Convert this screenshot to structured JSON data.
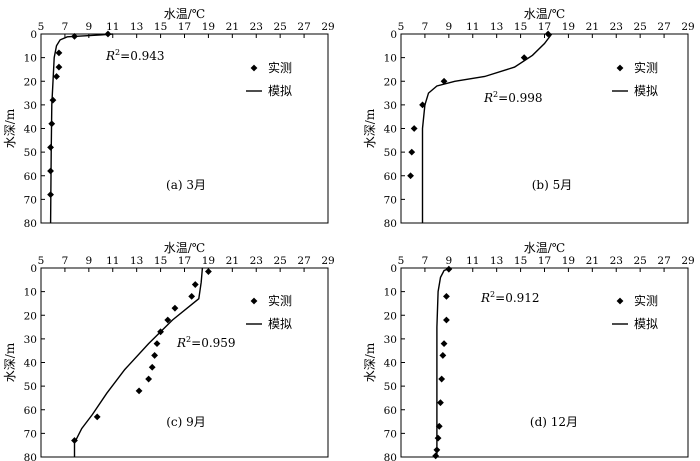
{
  "chart_data": [
    {
      "type": "scatter",
      "panel_label": "(a) 3月",
      "xlabel": "水温/℃",
      "ylabel": "水深/m",
      "xlim": [
        5,
        29
      ],
      "ylim": [
        0,
        80
      ],
      "x_ticks": [
        5,
        7,
        9,
        11,
        13,
        15,
        17,
        19,
        21,
        23,
        25,
        27,
        29
      ],
      "y_ticks": [
        0,
        10,
        20,
        30,
        40,
        50,
        60,
        70,
        80
      ],
      "r2_label": "R",
      "r2_value": "=0.943",
      "legend": [
        "实测",
        "模拟"
      ],
      "legend_position": "right",
      "series": [
        {
          "name": "实测",
          "kind": "marker",
          "points": [
            [
              10.6,
              0
            ],
            [
              7.8,
              1
            ],
            [
              6.5,
              8
            ],
            [
              6.5,
              14
            ],
            [
              6.3,
              18
            ],
            [
              6.0,
              28
            ],
            [
              5.9,
              38
            ],
            [
              5.8,
              48
            ],
            [
              5.8,
              58
            ],
            [
              5.8,
              68
            ]
          ]
        },
        {
          "name": "模拟",
          "kind": "line",
          "points": [
            [
              11.0,
              0
            ],
            [
              10.0,
              0.4
            ],
            [
              8.5,
              0.8
            ],
            [
              7.2,
              1.2
            ],
            [
              6.6,
              2.5
            ],
            [
              6.3,
              5
            ],
            [
              6.1,
              10
            ],
            [
              6.0,
              20
            ],
            [
              5.9,
              30
            ],
            [
              5.85,
              50
            ],
            [
              5.8,
              80
            ]
          ]
        }
      ]
    },
    {
      "type": "scatter",
      "panel_label": "(b) 5月",
      "xlabel": "水温/℃",
      "ylabel": "水深/m",
      "xlim": [
        5,
        29
      ],
      "ylim": [
        0,
        80
      ],
      "x_ticks": [
        5,
        7,
        9,
        11,
        13,
        15,
        17,
        19,
        21,
        23,
        25,
        27,
        29
      ],
      "y_ticks": [
        0,
        10,
        20,
        30,
        40,
        50,
        60,
        70,
        80
      ],
      "r2_label": "R",
      "r2_value": "=0.998",
      "legend": [
        "实测",
        "模拟"
      ],
      "legend_position": "right",
      "series": [
        {
          "name": "实测",
          "kind": "marker",
          "points": [
            [
              17.3,
              0
            ],
            [
              15.3,
              10
            ],
            [
              8.6,
              20
            ],
            [
              6.8,
              30
            ],
            [
              6.1,
              40
            ],
            [
              5.9,
              50
            ],
            [
              5.8,
              60
            ]
          ]
        },
        {
          "name": "模拟",
          "kind": "line",
          "points": [
            [
              17.6,
              0
            ],
            [
              17.0,
              4
            ],
            [
              16.0,
              9
            ],
            [
              14.5,
              14
            ],
            [
              12.0,
              18
            ],
            [
              9.5,
              20
            ],
            [
              8.0,
              22
            ],
            [
              7.3,
              25
            ],
            [
              7.0,
              30
            ],
            [
              6.8,
              40
            ],
            [
              6.8,
              60
            ],
            [
              6.8,
              80
            ]
          ]
        }
      ]
    },
    {
      "type": "scatter",
      "panel_label": "(c) 9月",
      "xlabel": "水温/℃",
      "ylabel": "水深/m",
      "xlim": [
        5,
        29
      ],
      "ylim": [
        0,
        80
      ],
      "x_ticks": [
        5,
        7,
        9,
        11,
        13,
        15,
        17,
        19,
        21,
        23,
        25,
        27,
        29
      ],
      "y_ticks": [
        0,
        10,
        20,
        30,
        40,
        50,
        60,
        70,
        80
      ],
      "r2_label": "R",
      "r2_value": "=0.959",
      "legend": [
        "实测",
        "模拟"
      ],
      "legend_position": "right",
      "series": [
        {
          "name": "实测",
          "kind": "marker",
          "points": [
            [
              19.0,
              1.5
            ],
            [
              17.9,
              7
            ],
            [
              17.6,
              12
            ],
            [
              16.2,
              17
            ],
            [
              15.6,
              22
            ],
            [
              15.0,
              27
            ],
            [
              14.7,
              32
            ],
            [
              14.5,
              37
            ],
            [
              14.3,
              42
            ],
            [
              14.0,
              47
            ],
            [
              13.2,
              52
            ],
            [
              9.7,
              63
            ],
            [
              7.8,
              73
            ]
          ]
        },
        {
          "name": "模拟",
          "kind": "line",
          "points": [
            [
              18.5,
              0
            ],
            [
              18.4,
              6
            ],
            [
              18.2,
              13
            ],
            [
              16.0,
              22
            ],
            [
              14.0,
              32
            ],
            [
              12.0,
              43
            ],
            [
              10.5,
              53
            ],
            [
              9.3,
              62
            ],
            [
              8.4,
              68
            ],
            [
              7.8,
              74
            ],
            [
              7.8,
              80
            ]
          ]
        }
      ]
    },
    {
      "type": "scatter",
      "panel_label": "(d) 12月",
      "xlabel": "水温/℃",
      "ylabel": "水深/m",
      "xlim": [
        5,
        29
      ],
      "ylim": [
        0,
        80
      ],
      "x_ticks": [
        5,
        7,
        9,
        11,
        13,
        15,
        17,
        19,
        21,
        23,
        25,
        27,
        29
      ],
      "y_ticks": [
        0,
        10,
        20,
        30,
        40,
        50,
        60,
        70,
        80
      ],
      "r2_label": "R",
      "r2_value": "=0.912",
      "legend": [
        "实测",
        "模拟"
      ],
      "legend_position": "right",
      "series": [
        {
          "name": "实测",
          "kind": "marker",
          "points": [
            [
              9.0,
              0.5
            ],
            [
              8.8,
              12
            ],
            [
              8.8,
              22
            ],
            [
              8.6,
              32
            ],
            [
              8.5,
              37
            ],
            [
              8.4,
              47
            ],
            [
              8.3,
              57
            ],
            [
              8.2,
              67
            ],
            [
              8.1,
              72
            ],
            [
              8.0,
              77
            ],
            [
              7.9,
              79.5
            ]
          ]
        },
        {
          "name": "模拟",
          "kind": "line",
          "points": [
            [
              9.2,
              0
            ],
            [
              8.6,
              1
            ],
            [
              8.3,
              4
            ],
            [
              8.1,
              10
            ],
            [
              8.0,
              25
            ],
            [
              8.0,
              80
            ]
          ]
        }
      ]
    }
  ]
}
